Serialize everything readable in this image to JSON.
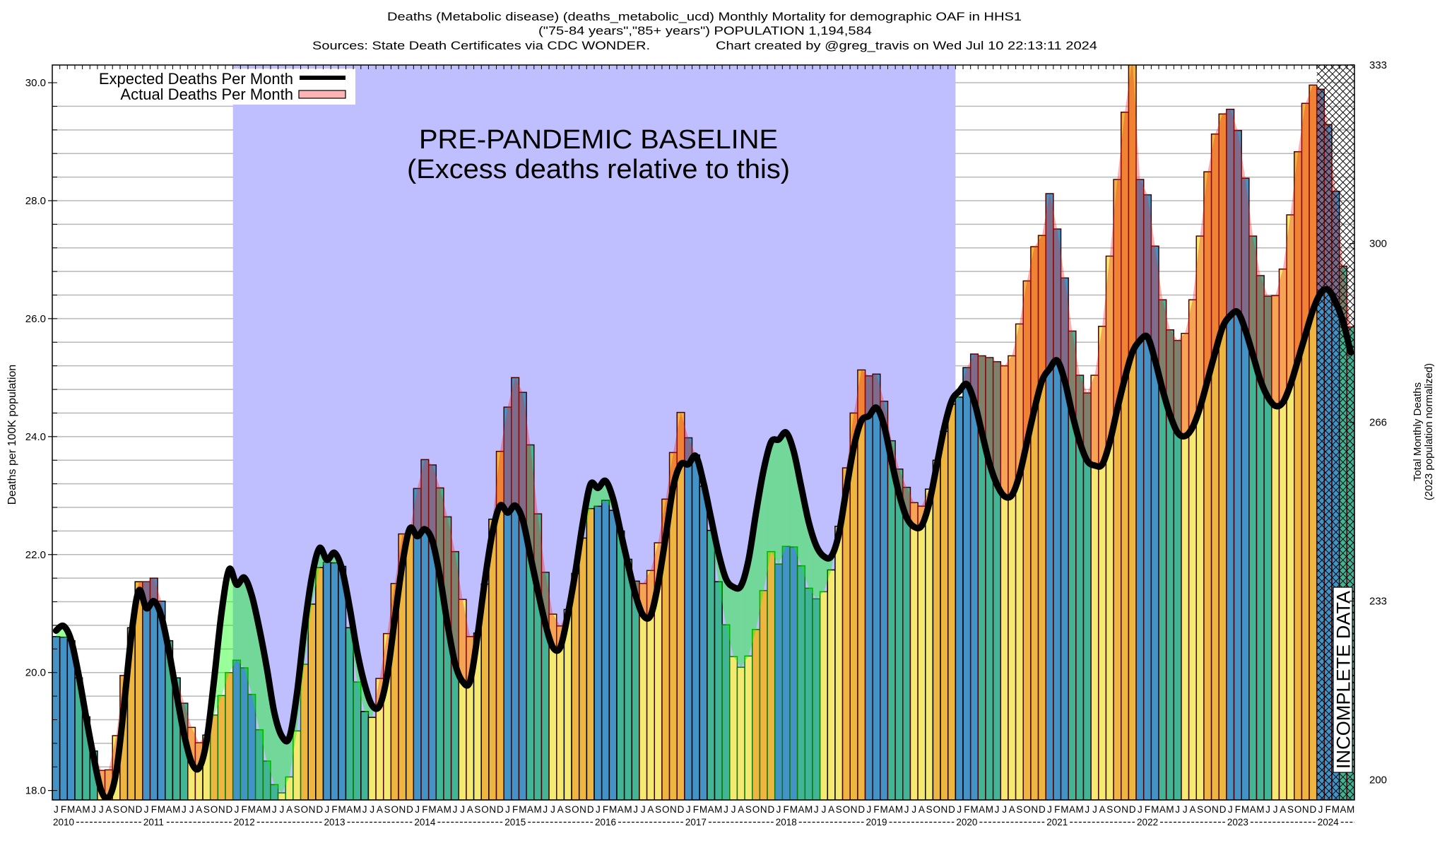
{
  "chart_data": {
    "type": "bar",
    "title": {
      "line1": "Deaths (Metabolic disease) (deaths_metabolic_ucd) Monthly Mortality for demographic OAF in HHS1",
      "line2": "(\"75-84 years\",\"85+ years\") POPULATION 1,194,584",
      "sources": "Sources: State Death Certificates via CDC WONDER.",
      "credit": "Chart created by @greg_travis on Wed Jul 10 22:13:11 2024"
    },
    "xlabel": "",
    "ylabel": "Deaths per 100K population",
    "y2label": {
      "line1": "Total Monthly Deaths",
      "line2": "(2023 population normalized)"
    },
    "ylim": [
      17.84,
      30.3
    ],
    "grid": true,
    "ytick_step_minor": 0.4,
    "yticks": [
      "18.0",
      "20.0",
      "22.0",
      "24.0",
      "26.0",
      "28.0",
      "30.0"
    ],
    "y2_per_unit": 11.0,
    "y2ticks": [
      {
        "label": "333",
        "value": 333.33
      },
      {
        "label": "300",
        "value": 300
      },
      {
        "label": "266",
        "value": 266.67
      },
      {
        "label": "233",
        "value": 233.33
      },
      {
        "label": "200",
        "value": 200
      }
    ],
    "x_start_year": 2010,
    "month_letters": [
      "J",
      "F",
      "M",
      "A",
      "M",
      "J",
      "J",
      "A",
      "S",
      "O",
      "N",
      "D"
    ],
    "year_labels": [
      "2010",
      "2011",
      "2012",
      "2013",
      "2014",
      "2015",
      "2016",
      "2017",
      "2018",
      "2019",
      "2020",
      "2021",
      "2022",
      "2023",
      "2024"
    ],
    "legend": {
      "placement": "top-left"
    },
    "series": [
      {
        "name": "Expected Deaths Per Month",
        "type": "line",
        "color": "#000000",
        "values": [
          20.71,
          20.79,
          20.55,
          19.96,
          19.24,
          18.56,
          18.0,
          17.88,
          18.32,
          19.4,
          20.63,
          21.39,
          21.09,
          21.21,
          20.95,
          20.36,
          19.64,
          18.96,
          18.48,
          18.38,
          18.84,
          19.88,
          21.03,
          21.75,
          21.49,
          21.61,
          21.31,
          20.75,
          20.08,
          19.32,
          18.92,
          18.9,
          19.64,
          20.75,
          21.63,
          22.11,
          21.91,
          22.03,
          21.75,
          21.11,
          20.36,
          19.8,
          19.44,
          19.44,
          19.96,
          20.91,
          21.83,
          22.44,
          22.31,
          22.43,
          22.23,
          21.63,
          20.83,
          20.16,
          19.85,
          19.85,
          20.63,
          21.59,
          22.39,
          22.83,
          22.71,
          22.83,
          22.59,
          21.99,
          21.39,
          20.83,
          20.43,
          20.43,
          20.99,
          21.71,
          22.55,
          23.19,
          23.13,
          23.25,
          22.95,
          22.39,
          21.83,
          21.31,
          20.97,
          20.97,
          21.51,
          22.31,
          23.15,
          23.53,
          23.53,
          23.67,
          23.23,
          22.63,
          22.03,
          21.59,
          21.45,
          21.47,
          21.91,
          22.71,
          23.43,
          23.91,
          23.95,
          24.07,
          23.75,
          23.15,
          22.55,
          22.15,
          21.97,
          21.97,
          22.35,
          23.11,
          23.83,
          24.27,
          24.35,
          24.49,
          24.19,
          23.59,
          23.03,
          22.63,
          22.47,
          22.49,
          22.87,
          23.51,
          24.15,
          24.61,
          24.77,
          24.89,
          24.59,
          24.07,
          23.55,
          23.19,
          22.99,
          23.01,
          23.35,
          23.91,
          24.47,
          24.95,
          25.15,
          25.29,
          24.95,
          24.39,
          23.91,
          23.59,
          23.51,
          23.53,
          23.91,
          24.47,
          24.99,
          25.43,
          25.63,
          25.69,
          25.3,
          24.8,
          24.37,
          24.07,
          24.01,
          24.16,
          24.5,
          24.96,
          25.43,
          25.86,
          26.05,
          26.11,
          25.81,
          25.39,
          24.96,
          24.67,
          24.52,
          24.58,
          24.88,
          25.3,
          25.73,
          26.15,
          26.43,
          26.49,
          26.28,
          25.94,
          25.43
        ]
      },
      {
        "name": "Actual Deaths Per Month",
        "type": "bar",
        "color": "#ffb3b3",
        "values": [
          20.61,
          20.6,
          20.54,
          19.91,
          19.25,
          18.67,
          18.34,
          18.35,
          18.93,
          19.95,
          20.76,
          21.54,
          21.54,
          21.6,
          21.21,
          20.54,
          19.91,
          19.48,
          19.07,
          18.81,
          18.94,
          19.28,
          19.61,
          20.0,
          20.21,
          20.08,
          19.63,
          19.03,
          18.5,
          18.1,
          17.96,
          18.23,
          19.01,
          20.14,
          21.16,
          21.78,
          21.87,
          21.86,
          21.8,
          20.76,
          19.84,
          19.34,
          19.24,
          19.9,
          20.66,
          21.51,
          22.35,
          22.4,
          23.12,
          23.61,
          23.52,
          23.13,
          22.64,
          22.05,
          21.24,
          20.61,
          20.67,
          21.5,
          22.6,
          23.75,
          24.5,
          25.0,
          24.75,
          23.86,
          22.69,
          21.7,
          20.99,
          20.79,
          21.07,
          21.68,
          22.28,
          22.78,
          22.82,
          22.92,
          22.75,
          22.4,
          21.92,
          21.55,
          21.51,
          21.73,
          22.2,
          22.94,
          23.73,
          24.41,
          23.98,
          23.69,
          23.16,
          22.41,
          21.54,
          20.81,
          20.27,
          20.09,
          20.28,
          20.73,
          21.39,
          22.05,
          21.84,
          22.14,
          22.13,
          21.81,
          21.43,
          21.25,
          21.37,
          21.74,
          22.48,
          23.47,
          24.4,
          25.13,
          25.03,
          25.06,
          24.6,
          23.93,
          23.45,
          23.14,
          22.88,
          22.82,
          23.11,
          23.6,
          24.09,
          24.55,
          24.67,
          25.17,
          25.4,
          25.37,
          25.34,
          25.27,
          25.2,
          25.37,
          25.91,
          26.64,
          27.22,
          27.41,
          28.12,
          27.52,
          26.69,
          25.79,
          25.04,
          24.74,
          25.04,
          25.87,
          27.06,
          28.36,
          29.5,
          30.4,
          28.36,
          28.1,
          27.23,
          26.32,
          25.81,
          25.63,
          25.75,
          26.32,
          27.4,
          28.49,
          29.13,
          29.47,
          29.55,
          29.19,
          28.38,
          27.4,
          26.73,
          26.38,
          26.39,
          26.84,
          27.76,
          28.83,
          29.65,
          29.96,
          29.89,
          29.29,
          28.16,
          26.89,
          25.86
        ]
      }
    ],
    "season_colors": [
      "#4393c6",
      "#41b596",
      "#f4ea71",
      "#edb641"
    ],
    "excess_color": "rgba(245,30,25,0.34)",
    "deficit_color": "rgba(0,255,0,0.4)",
    "annotations": {
      "baseline": {
        "line1": "PRE-PANDEMIC BASELINE",
        "line2": "(Excess deaths relative to this)",
        "start_index": 24,
        "end_index": 120,
        "color": "#bfbfff"
      },
      "incomplete": {
        "text": "INCOMPLETE DATA",
        "start_index": 168
      }
    }
  }
}
